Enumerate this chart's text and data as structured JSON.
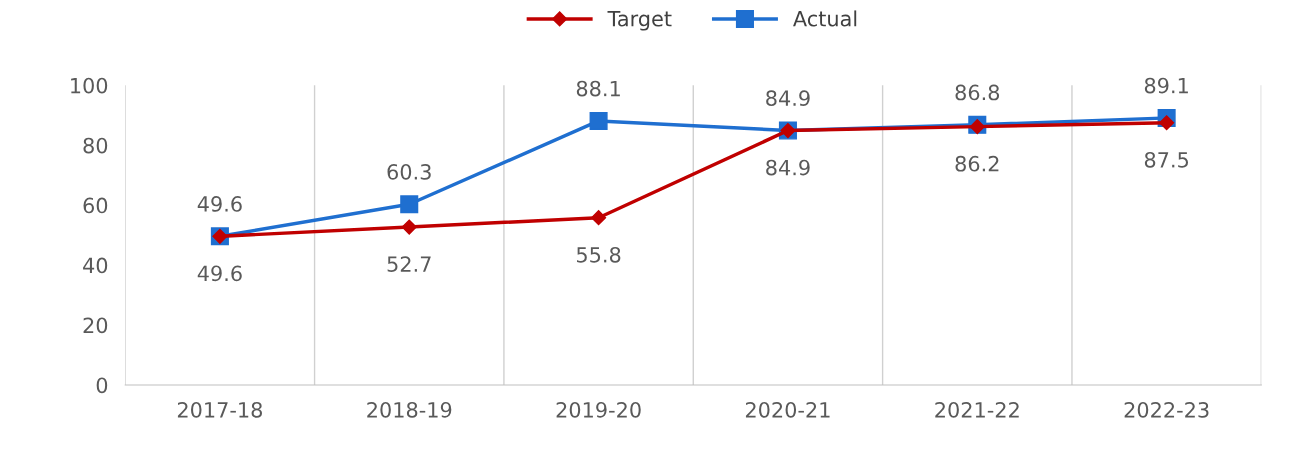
{
  "chart_data": {
    "type": "line",
    "categories": [
      "2017-18",
      "2018-19",
      "2019-20",
      "2020-21",
      "2021-22",
      "2022-23"
    ],
    "series": [
      {
        "name": "Target",
        "color": "#c00000",
        "marker": "diamond",
        "values": [
          49.6,
          52.7,
          55.8,
          84.9,
          86.2,
          87.5
        ]
      },
      {
        "name": "Actual",
        "color": "#1f6fd0",
        "marker": "square",
        "values": [
          49.6,
          60.3,
          88.1,
          84.9,
          86.8,
          89.1
        ]
      }
    ],
    "ylim": [
      0,
      100
    ],
    "yticks": [
      0,
      20,
      40,
      60,
      80,
      100
    ],
    "grid": "x",
    "legend": "top",
    "data_labels": true,
    "line_style": "solid"
  }
}
